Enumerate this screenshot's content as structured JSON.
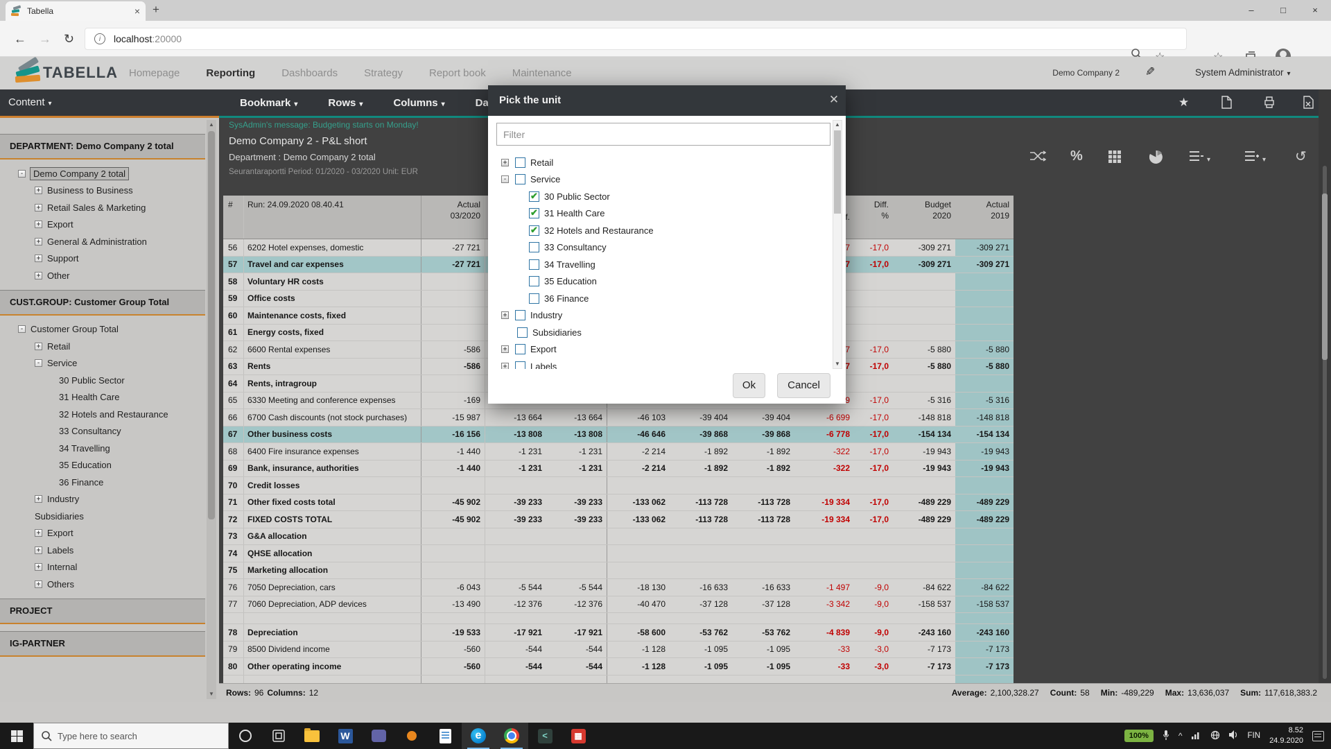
{
  "colors": {
    "accent_teal": "#10897e",
    "accent_orange": "#cd7f2e",
    "selection_teal": "#a2c6c7",
    "column_teal": "#9fc4c5",
    "negative_red": "#c00000"
  },
  "browser": {
    "tab_title": "Tabella",
    "url_host": "localhost",
    "url_port": ":20000"
  },
  "app_header": {
    "nav": [
      {
        "label": "Homepage",
        "active": false
      },
      {
        "label": "Reporting",
        "active": true
      },
      {
        "label": "Dashboards",
        "active": false
      },
      {
        "label": "Strategy",
        "active": false
      },
      {
        "label": "Report book",
        "active": false
      },
      {
        "label": "Maintenance",
        "active": false
      }
    ],
    "company": "Demo Company 2",
    "user": "System Administrator"
  },
  "sidebar": {
    "content_label": "Content",
    "sections": [
      {
        "title": "DEPARTMENT: Demo Company 2 total",
        "items": [
          {
            "label": "Demo Company 2 total",
            "lvl": 0,
            "exp": "minus",
            "sel": true
          },
          {
            "label": "Business to Business",
            "lvl": 1,
            "exp": "plus"
          },
          {
            "label": "Retail Sales & Marketing",
            "lvl": 1,
            "exp": "plus"
          },
          {
            "label": "Export",
            "lvl": 1,
            "exp": "plus"
          },
          {
            "label": "General & Administration",
            "lvl": 1,
            "exp": "plus"
          },
          {
            "label": "Support",
            "lvl": 1,
            "exp": "plus"
          },
          {
            "label": "Other",
            "lvl": 1,
            "exp": "plus"
          }
        ]
      },
      {
        "title": "CUST.GROUP: Customer Group Total",
        "items": [
          {
            "label": "Customer Group Total",
            "lvl": 0,
            "exp": "minus"
          },
          {
            "label": "Retail",
            "lvl": 1,
            "exp": "plus"
          },
          {
            "label": "Service",
            "lvl": 1,
            "exp": "minus"
          },
          {
            "label": "30 Public Sector",
            "lvl": 2,
            "exp": "none"
          },
          {
            "label": "31 Health Care",
            "lvl": 2,
            "exp": "none"
          },
          {
            "label": "32 Hotels and Restaurance",
            "lvl": 2,
            "exp": "none"
          },
          {
            "label": "33 Consultancy",
            "lvl": 2,
            "exp": "none"
          },
          {
            "label": "34 Travelling",
            "lvl": 2,
            "exp": "none"
          },
          {
            "label": "35 Education",
            "lvl": 2,
            "exp": "none"
          },
          {
            "label": "36 Finance",
            "lvl": 2,
            "exp": "none"
          },
          {
            "label": "Industry",
            "lvl": 1,
            "exp": "plus"
          },
          {
            "label": "Subsidiaries",
            "lvl": 1,
            "exp": "none"
          },
          {
            "label": "Export",
            "lvl": 1,
            "exp": "plus"
          },
          {
            "label": "Labels",
            "lvl": 1,
            "exp": "plus"
          },
          {
            "label": "Internal",
            "lvl": 1,
            "exp": "plus"
          },
          {
            "label": "Others",
            "lvl": 1,
            "exp": "plus"
          }
        ]
      },
      {
        "title": "PROJECT",
        "items": []
      },
      {
        "title": "IG-PARTNER",
        "items": []
      }
    ]
  },
  "toolbar": {
    "menus": [
      "Bookmark",
      "Rows",
      "Columns",
      "Data"
    ]
  },
  "report": {
    "message": "SysAdmin's message: Budgeting starts on Monday!",
    "title": "Demo Company 2 - P&L short",
    "subtitle": "Department : Demo Company 2 total",
    "meta": "Seurantaraportti Period: 01/2020 - 03/2020 Unit: EUR"
  },
  "table": {
    "headers": [
      "#",
      "Run: 24.09.2020 08.40.41",
      "Actual\n03/2020",
      "",
      "",
      "",
      "",
      "",
      "Diff.",
      "Diff.\n%",
      "Budget\n2020",
      "Actual\n2019"
    ],
    "rows": [
      {
        "n": "56",
        "name": "6202 Hotel expenses, domestic",
        "bold": false,
        "sel": false,
        "v": [
          "-27 721",
          "",
          "",
          "",
          "",
          "",
          "7",
          "-17,0",
          "-309 271",
          "-309 271"
        ]
      },
      {
        "n": "57",
        "name": "Travel and car expenses",
        "bold": true,
        "sel": true,
        "v": [
          "-27 721",
          "",
          "",
          "",
          "",
          "",
          "7",
          "-17,0",
          "-309 271",
          "-309 271"
        ]
      },
      {
        "n": "58",
        "name": "Voluntary HR costs",
        "bold": true,
        "sel": false,
        "v": [
          "",
          "",
          "",
          "",
          "",
          "",
          "",
          "",
          "",
          ""
        ]
      },
      {
        "n": "59",
        "name": "Office costs",
        "bold": true,
        "sel": false,
        "v": [
          "",
          "",
          "",
          "",
          "",
          "",
          "",
          "",
          "",
          ""
        ]
      },
      {
        "n": "60",
        "name": "Maintenance costs, fixed",
        "bold": true,
        "sel": false,
        "v": [
          "",
          "",
          "",
          "",
          "",
          "",
          "",
          "",
          "",
          ""
        ]
      },
      {
        "n": "61",
        "name": "Energy costs, fixed",
        "bold": true,
        "sel": false,
        "v": [
          "",
          "",
          "",
          "",
          "",
          "",
          "",
          "",
          "",
          ""
        ]
      },
      {
        "n": "62",
        "name": "6600 Rental expenses",
        "bold": false,
        "sel": false,
        "v": [
          "-586",
          "",
          "",
          "",
          "",
          "",
          "7",
          "-17,0",
          "-5 880",
          "-5 880"
        ]
      },
      {
        "n": "63",
        "name": "Rents",
        "bold": true,
        "sel": false,
        "v": [
          "-586",
          "",
          "",
          "",
          "",
          "",
          "7",
          "-17,0",
          "-5 880",
          "-5 880"
        ]
      },
      {
        "n": "64",
        "name": "Rents, intragroup",
        "bold": true,
        "sel": false,
        "v": [
          "",
          "",
          "",
          "",
          "",
          "",
          "",
          "",
          "",
          ""
        ]
      },
      {
        "n": "65",
        "name": "6330 Meeting and conference expenses",
        "bold": false,
        "sel": false,
        "v": [
          "-169",
          "",
          "",
          "",
          "",
          "",
          "9",
          "-17,0",
          "-5 316",
          "-5 316"
        ]
      },
      {
        "n": "66",
        "name": "6700 Cash discounts (not stock purchases)",
        "bold": false,
        "sel": false,
        "v": [
          "-15 987",
          "-13 664",
          "-13 664",
          "-46 103",
          "-39 404",
          "-39 404",
          "-6 699",
          "-17,0",
          "-148 818",
          "-148 818"
        ]
      },
      {
        "n": "67",
        "name": "Other business costs",
        "bold": true,
        "sel": true,
        "v": [
          "-16 156",
          "-13 808",
          "-13 808",
          "-46 646",
          "-39 868",
          "-39 868",
          "-6 778",
          "-17,0",
          "-154 134",
          "-154 134"
        ]
      },
      {
        "n": "68",
        "name": "6400 Fire insurance expenses",
        "bold": false,
        "sel": false,
        "v": [
          "-1 440",
          "-1 231",
          "-1 231",
          "-2 214",
          "-1 892",
          "-1 892",
          "-322",
          "-17,0",
          "-19 943",
          "-19 943"
        ]
      },
      {
        "n": "69",
        "name": "Bank, insurance, authorities",
        "bold": true,
        "sel": false,
        "v": [
          "-1 440",
          "-1 231",
          "-1 231",
          "-2 214",
          "-1 892",
          "-1 892",
          "-322",
          "-17,0",
          "-19 943",
          "-19 943"
        ]
      },
      {
        "n": "70",
        "name": "Credit losses",
        "bold": true,
        "sel": false,
        "v": [
          "",
          "",
          "",
          "",
          "",
          "",
          "",
          "",
          "",
          ""
        ]
      },
      {
        "n": "71",
        "name": "Other fixed costs total",
        "bold": true,
        "sel": false,
        "v": [
          "-45 902",
          "-39 233",
          "-39 233",
          "-133 062",
          "-113 728",
          "-113 728",
          "-19 334",
          "-17,0",
          "-489 229",
          "-489 229"
        ]
      },
      {
        "n": "72",
        "name": "FIXED COSTS TOTAL",
        "bold": true,
        "sel": false,
        "v": [
          "-45 902",
          "-39 233",
          "-39 233",
          "-133 062",
          "-113 728",
          "-113 728",
          "-19 334",
          "-17,0",
          "-489 229",
          "-489 229"
        ]
      },
      {
        "n": "73",
        "name": "G&A allocation",
        "bold": true,
        "sel": false,
        "v": [
          "",
          "",
          "",
          "",
          "",
          "",
          "",
          "",
          "",
          ""
        ]
      },
      {
        "n": "74",
        "name": "QHSE allocation",
        "bold": true,
        "sel": false,
        "v": [
          "",
          "",
          "",
          "",
          "",
          "",
          "",
          "",
          "",
          ""
        ]
      },
      {
        "n": "75",
        "name": "Marketing allocation",
        "bold": true,
        "sel": false,
        "v": [
          "",
          "",
          "",
          "",
          "",
          "",
          "",
          "",
          "",
          ""
        ]
      },
      {
        "n": "76",
        "name": "7050 Depreciation, cars",
        "bold": false,
        "sel": false,
        "v": [
          "-6 043",
          "-5 544",
          "-5 544",
          "-18 130",
          "-16 633",
          "-16 633",
          "-1 497",
          "-9,0",
          "-84 622",
          "-84 622"
        ]
      },
      {
        "n": "77",
        "name": "7060 Depreciation, ADP devices",
        "bold": false,
        "sel": false,
        "v": [
          "-13 490",
          "-12 376",
          "-12 376",
          "-40 470",
          "-37 128",
          "-37 128",
          "-3 342",
          "-9,0",
          "-158 537",
          "-158 537"
        ]
      },
      {
        "spacer": true
      },
      {
        "n": "78",
        "name": "Depreciation",
        "bold": true,
        "sel": false,
        "v": [
          "-19 533",
          "-17 921",
          "-17 921",
          "-58 600",
          "-53 762",
          "-53 762",
          "-4 839",
          "-9,0",
          "-243 160",
          "-243 160"
        ]
      },
      {
        "n": "79",
        "name": "8500 Dividend income",
        "bold": false,
        "sel": false,
        "v": [
          "-560",
          "-544",
          "-544",
          "-1 128",
          "-1 095",
          "-1 095",
          "-33",
          "-3,0",
          "-7 173",
          "-7 173"
        ]
      },
      {
        "n": "80",
        "name": "Other operating income",
        "bold": true,
        "sel": false,
        "v": [
          "-560",
          "-544",
          "-544",
          "-1 128",
          "-1 095",
          "-1 095",
          "-33",
          "-3,0",
          "-7 173",
          "-7 173"
        ]
      },
      {
        "n": "",
        "name": "",
        "bold": false,
        "sel": false,
        "v": [
          "",
          "",
          "",
          "",
          "",
          "",
          "",
          "",
          "",
          ""
        ]
      }
    ]
  },
  "modal": {
    "title": "Pick the unit",
    "filter_placeholder": "Filter",
    "items": [
      {
        "label": "Retail",
        "lvl": 0,
        "exp": "plus",
        "checked": false
      },
      {
        "label": "Service",
        "lvl": 0,
        "exp": "minus",
        "checked": false
      },
      {
        "label": "30 Public Sector",
        "lvl": 1,
        "exp": "none",
        "checked": true
      },
      {
        "label": "31 Health Care",
        "lvl": 1,
        "exp": "none",
        "checked": true
      },
      {
        "label": "32 Hotels and Restaurance",
        "lvl": 1,
        "exp": "none",
        "checked": true
      },
      {
        "label": "33 Consultancy",
        "lvl": 1,
        "exp": "none",
        "checked": false
      },
      {
        "label": "34 Travelling",
        "lvl": 1,
        "exp": "none",
        "checked": false
      },
      {
        "label": "35 Education",
        "lvl": 1,
        "exp": "none",
        "checked": false
      },
      {
        "label": "36 Finance",
        "lvl": 1,
        "exp": "none",
        "checked": false
      },
      {
        "label": "Industry",
        "lvl": 0,
        "exp": "plus",
        "checked": false
      },
      {
        "label": "Subsidiaries",
        "lvl": 0,
        "exp": "none",
        "checked": false
      },
      {
        "label": "Export",
        "lvl": 0,
        "exp": "plus",
        "checked": false
      },
      {
        "label": "Labels",
        "lvl": 0,
        "exp": "plus",
        "checked": false
      }
    ],
    "ok_label": "Ok",
    "cancel_label": "Cancel"
  },
  "status_bar": {
    "rows_label": "Rows:",
    "rows_value": "96",
    "columns_label": "Columns:",
    "columns_value": "12",
    "stats": [
      {
        "label": "Average:",
        "value": "2,100,328.27"
      },
      {
        "label": "Count:",
        "value": "58"
      },
      {
        "label": "Min:",
        "value": "-489,229"
      },
      {
        "label": "Max:",
        "value": "13,636,037"
      },
      {
        "label": "Sum:",
        "value": "117,618,383.2"
      }
    ]
  },
  "taskbar": {
    "search_placeholder": "Type here to search",
    "battery": "100%",
    "lang": "FIN",
    "time": "8.52",
    "date": "24.9.2020"
  }
}
